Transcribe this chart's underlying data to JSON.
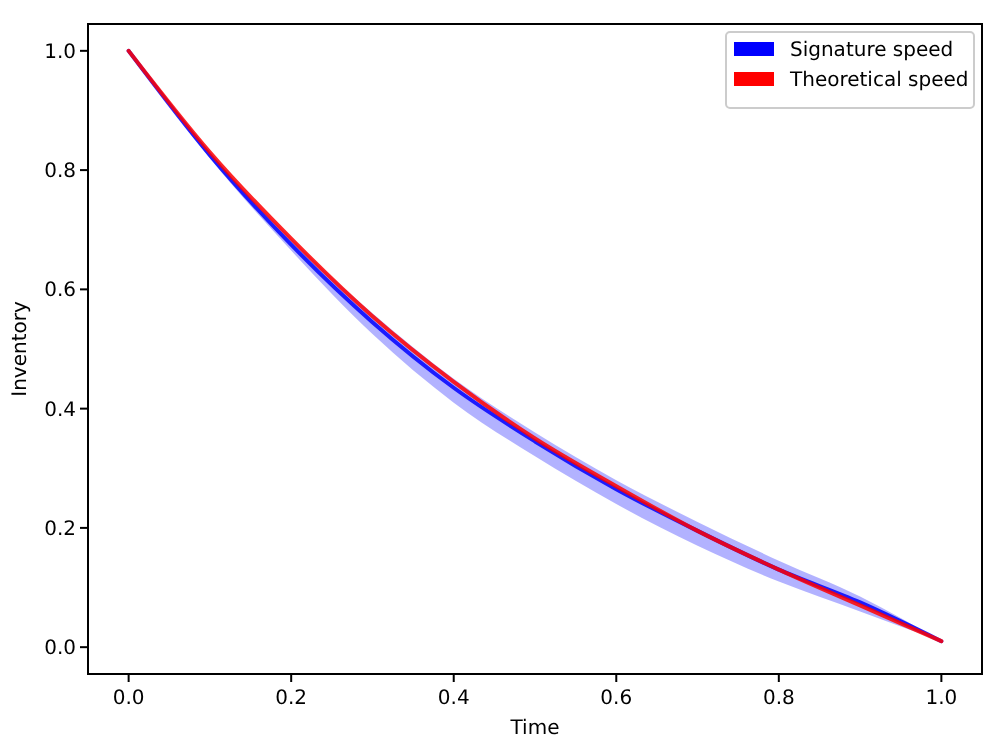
{
  "chart_data": {
    "type": "line",
    "xlabel": "Time",
    "ylabel": "Inventory",
    "x": [
      0,
      0.1,
      0.2,
      0.3,
      0.4,
      0.5,
      0.6,
      0.7,
      0.8,
      0.9,
      1.0
    ],
    "series": [
      {
        "name": "Signature speed",
        "color": "#0000ff",
        "values": [
          1.0,
          0.825,
          0.675,
          0.545,
          0.435,
          0.345,
          0.265,
          0.195,
          0.13,
          0.075,
          0.01
        ],
        "lower": [
          1.0,
          0.82,
          0.665,
          0.525,
          0.41,
          0.32,
          0.24,
          0.17,
          0.11,
          0.06,
          0.01
        ],
        "upper": [
          1.0,
          0.83,
          0.685,
          0.56,
          0.45,
          0.36,
          0.28,
          0.21,
          0.145,
          0.085,
          0.01
        ]
      },
      {
        "name": "Theoretical speed",
        "color": "#ff0000",
        "values": [
          1.0,
          0.83,
          0.685,
          0.555,
          0.445,
          0.35,
          0.27,
          0.195,
          0.13,
          0.07,
          0.01
        ]
      }
    ],
    "xlim": [
      -0.05,
      1.05
    ],
    "ylim": [
      -0.045,
      1.045
    ],
    "xticks": [
      {
        "value": 0,
        "label": "0.0"
      },
      {
        "value": 0.2,
        "label": "0.2"
      },
      {
        "value": 0.4,
        "label": "0.4"
      },
      {
        "value": 0.6,
        "label": "0.6"
      },
      {
        "value": 0.8,
        "label": "0.8"
      },
      {
        "value": 1,
        "label": "1.0"
      }
    ],
    "yticks": [
      {
        "value": 0,
        "label": "0.0"
      },
      {
        "value": 0.2,
        "label": "0.2"
      },
      {
        "value": 0.4,
        "label": "0.4"
      },
      {
        "value": 0.6,
        "label": "0.6"
      },
      {
        "value": 0.8,
        "label": "0.8"
      },
      {
        "value": 1,
        "label": "1.0"
      }
    ],
    "legend": "top right",
    "grid": false,
    "line_style": "solid"
  }
}
